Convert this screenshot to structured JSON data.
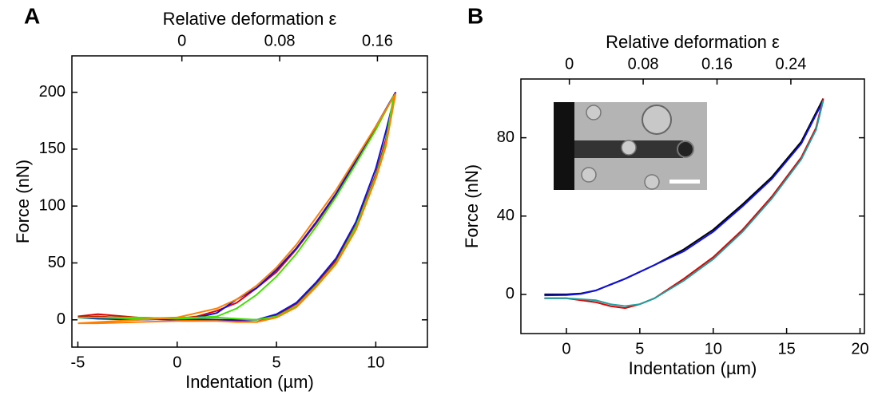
{
  "chart_data": [
    {
      "type": "line",
      "panel_label": "A",
      "x_label": "Indentation (µm)",
      "y_label": "Force (nN)",
      "x2_label": "Relative deformation ε",
      "xlim": [
        -5.3,
        12.6
      ],
      "xticks": [
        -5,
        0,
        5,
        10
      ],
      "ylim": [
        -24,
        232
      ],
      "yticks": [
        0,
        50,
        100,
        150,
        200
      ],
      "x2lim": [
        -0.09,
        0.2009
      ],
      "x2ticks": [
        0,
        0.08,
        0.16
      ],
      "series": [
        {
          "color": "#e00000",
          "x": [
            -5,
            -4,
            -2,
            0,
            1,
            2,
            3,
            4,
            5,
            6,
            7,
            8,
            9,
            10,
            11,
            10.5,
            10,
            9,
            8,
            7,
            6,
            5,
            4,
            3,
            2,
            0,
            -2,
            -4,
            -5
          ],
          "values": [
            3,
            5,
            2,
            1,
            3,
            8,
            15,
            28,
            42,
            62,
            85,
            110,
            138,
            168,
            200,
            158,
            128,
            83,
            52,
            32,
            14,
            4,
            -2,
            -1,
            0,
            0,
            1,
            3,
            2
          ]
        },
        {
          "color": "#1010e0",
          "x": [
            -5,
            -4,
            -2,
            0,
            1,
            2,
            3,
            4,
            5,
            6,
            7,
            8,
            9,
            10,
            11,
            10.5,
            10,
            9,
            8,
            7,
            6,
            5,
            4,
            3,
            2,
            0,
            -2,
            -4,
            -5
          ],
          "values": [
            2,
            1,
            1,
            0,
            2,
            6,
            18,
            28,
            44,
            63,
            86,
            111,
            140,
            170,
            200,
            165,
            133,
            86,
            54,
            33,
            15,
            5,
            0,
            0,
            0,
            1,
            0,
            1,
            2
          ]
        },
        {
          "color": "#40e000",
          "x": [
            -5,
            -4,
            -2,
            0,
            1,
            2,
            3,
            4,
            5,
            6,
            7,
            8,
            9,
            10,
            10.9,
            10.5,
            10,
            9,
            8,
            7,
            6,
            5,
            4,
            3,
            2,
            0,
            -2,
            -4,
            -5
          ],
          "values": [
            2,
            2,
            1,
            2,
            2,
            3,
            10,
            22,
            38,
            58,
            82,
            108,
            137,
            167,
            197,
            155,
            126,
            82,
            50,
            30,
            12,
            3,
            0,
            1,
            2,
            1,
            2,
            2,
            2
          ]
        },
        {
          "color": "#ff8000",
          "x": [
            -5,
            -4,
            -2,
            0,
            1,
            2,
            3,
            4,
            5,
            6,
            7,
            8,
            9,
            10,
            11,
            10.5,
            10,
            9,
            8,
            7,
            6,
            5,
            4,
            3,
            2,
            0,
            -2,
            -4,
            -5
          ],
          "values": [
            -3,
            -2,
            0,
            2,
            6,
            10,
            18,
            30,
            46,
            66,
            90,
            114,
            142,
            170,
            199,
            152,
            124,
            79,
            49,
            29,
            11,
            2,
            -2,
            -2,
            -1,
            -1,
            -2,
            -3,
            -3
          ]
        }
      ]
    },
    {
      "type": "line",
      "panel_label": "B",
      "x_label": "Indentation (µm)",
      "y_label": "Force (nN)",
      "x2_label": "Relative deformation ε",
      "xlim": [
        -3.1,
        20.3
      ],
      "xticks": [
        0,
        5,
        10,
        15,
        20
      ],
      "ylim": [
        -20,
        110
      ],
      "yticks": [
        0,
        40,
        80
      ],
      "x2lim": [
        -0.0525,
        0.3197
      ],
      "x2ticks": [
        0,
        0.08,
        0.16,
        0.24
      ],
      "series": [
        {
          "color": "#000000",
          "x": [
            -1.5,
            0,
            1,
            2,
            4,
            6,
            8,
            10,
            12,
            14,
            16,
            17.5
          ],
          "values": [
            0,
            0,
            0.5,
            2,
            8,
            15,
            23,
            33,
            46,
            60,
            78,
            100
          ]
        },
        {
          "color": "#1010e0",
          "x": [
            -1.5,
            0,
            1,
            2,
            4,
            6,
            8,
            10,
            12,
            14,
            16,
            17.5
          ],
          "values": [
            -0.5,
            -0.3,
            0.3,
            2,
            8,
            15,
            22,
            32,
            45,
            59,
            77,
            99
          ]
        },
        {
          "color": "#e00000",
          "x": [
            17.5,
            17,
            16,
            14,
            12,
            10,
            8,
            6,
            5,
            4,
            3,
            2,
            0,
            -1.5
          ],
          "values": [
            100,
            85,
            70,
            50,
            33,
            19,
            8,
            -2,
            -5,
            -7,
            -6,
            -4,
            -2,
            -2
          ]
        },
        {
          "color": "#20a0a0",
          "x": [
            17.5,
            17,
            16,
            14,
            12,
            10,
            8,
            6,
            5,
            4,
            3,
            2,
            0,
            -1.5
          ],
          "values": [
            99,
            84,
            69,
            49,
            32,
            18,
            7,
            -2,
            -5,
            -6,
            -5,
            -3,
            -2,
            -2
          ]
        }
      ]
    }
  ]
}
